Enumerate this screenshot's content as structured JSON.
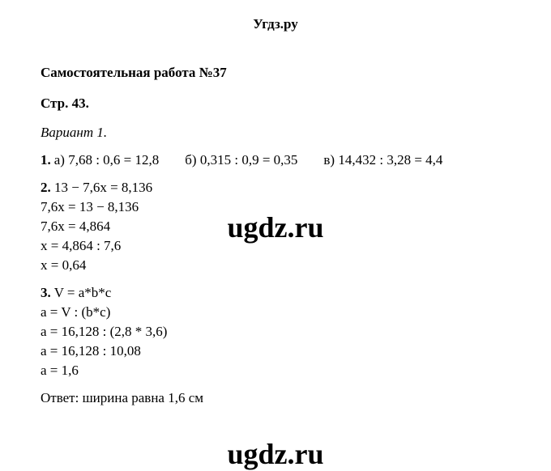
{
  "header": {
    "site": "Угдз.ру"
  },
  "title": "Самостоятельная работа №37",
  "page_ref": "Стр. 43.",
  "variant": "Вариант 1.",
  "problem1": {
    "num": "1.",
    "a": "а) 7,68 : 0,6 = 12,8",
    "b": "б) 0,315 : 0,9 = 0,35",
    "c": "в) 14,432 : 3,28 = 4,4"
  },
  "problem2": {
    "num": "2.",
    "line1": "13 − 7,6x = 8,136",
    "line2": "7,6x = 13 − 8,136",
    "line3": "7,6x = 4,864",
    "line4": "x = 4,864 : 7,6",
    "line5": "x = 0,64"
  },
  "problem3": {
    "num": "3.",
    "line1": "V = a*b*c",
    "line2": "a = V : (b*c)",
    "line3": "a = 16,128 : (2,8 * 3,6)",
    "line4": "a = 16,128 : 10,08",
    "line5": "a = 1,6",
    "answer": "Ответ: ширина равна 1,6 см"
  },
  "watermark": "ugdz.ru"
}
